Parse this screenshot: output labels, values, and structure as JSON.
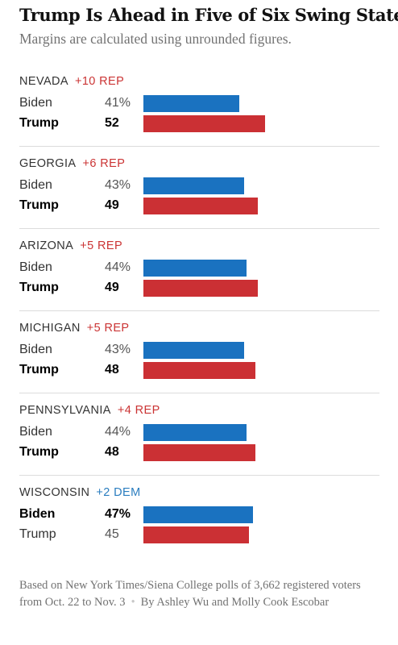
{
  "header": {
    "title": "Trump Is Ahead in Five of Six Swing States",
    "subtitle": "Margins are calculated using unrounded figures."
  },
  "colors": {
    "biden": "#1a72c0",
    "trump": "#cb3034",
    "rep_text": "#cb3434",
    "dem_text": "#2a7dbf"
  },
  "chart_data": {
    "type": "bar",
    "title": "Trump Is Ahead in Five of Six Swing States",
    "subtitle": "Margins are calculated using unrounded figures.",
    "xlim": [
      0,
      60
    ],
    "series": [
      {
        "name": "Biden",
        "values": [
          41,
          43,
          44,
          43,
          44,
          47
        ]
      },
      {
        "name": "Trump",
        "values": [
          52,
          49,
          49,
          48,
          48,
          45
        ]
      }
    ],
    "states": [
      {
        "name": "NEVADA",
        "margin": "+10 REP",
        "party": "rep",
        "rows": [
          {
            "candidate": "Biden",
            "pct": "41%",
            "value": 41,
            "leader": false
          },
          {
            "candidate": "Trump",
            "pct": "52",
            "value": 52,
            "leader": true
          }
        ]
      },
      {
        "name": "GEORGIA",
        "margin": "+6 REP",
        "party": "rep",
        "rows": [
          {
            "candidate": "Biden",
            "pct": "43%",
            "value": 43,
            "leader": false
          },
          {
            "candidate": "Trump",
            "pct": "49",
            "value": 49,
            "leader": true
          }
        ]
      },
      {
        "name": "ARIZONA",
        "margin": "+5 REP",
        "party": "rep",
        "rows": [
          {
            "candidate": "Biden",
            "pct": "44%",
            "value": 44,
            "leader": false
          },
          {
            "candidate": "Trump",
            "pct": "49",
            "value": 49,
            "leader": true
          }
        ]
      },
      {
        "name": "MICHIGAN",
        "margin": "+5 REP",
        "party": "rep",
        "rows": [
          {
            "candidate": "Biden",
            "pct": "43%",
            "value": 43,
            "leader": false
          },
          {
            "candidate": "Trump",
            "pct": "48",
            "value": 48,
            "leader": true
          }
        ]
      },
      {
        "name": "PENNSYLVANIA",
        "margin": "+4 REP",
        "party": "rep",
        "rows": [
          {
            "candidate": "Biden",
            "pct": "44%",
            "value": 44,
            "leader": false
          },
          {
            "candidate": "Trump",
            "pct": "48",
            "value": 48,
            "leader": true
          }
        ]
      },
      {
        "name": "WISCONSIN",
        "margin": "+2 DEM",
        "party": "dem",
        "rows": [
          {
            "candidate": "Biden",
            "pct": "47%",
            "value": 47,
            "leader": true
          },
          {
            "candidate": "Trump",
            "pct": "45",
            "value": 45,
            "leader": false
          }
        ]
      }
    ]
  },
  "footer": {
    "source": "Based on New York Times/Siena College polls of 3,662 registered voters from Oct. 22 to Nov. 3",
    "separator": "•",
    "byline": "By Ashley Wu and Molly Cook Escobar"
  }
}
